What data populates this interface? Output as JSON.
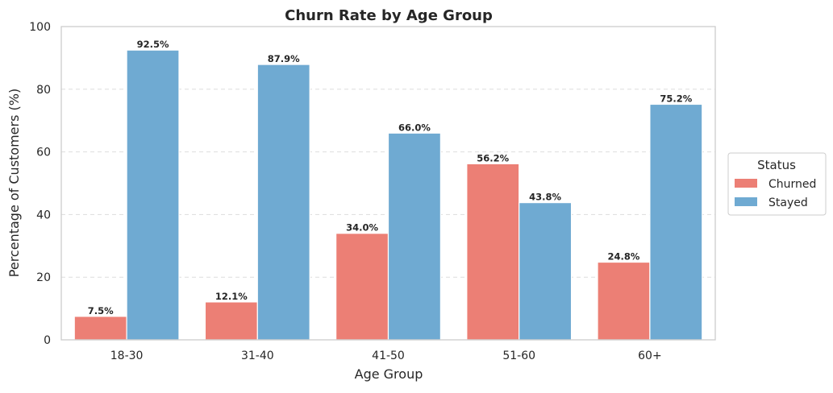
{
  "chart_data": {
    "type": "bar",
    "title": "Churn Rate by Age Group",
    "xlabel": "Age Group",
    "ylabel": "Percentage of Customers (%)",
    "categories": [
      "18-30",
      "31-40",
      "41-50",
      "51-60",
      "60+"
    ],
    "series": [
      {
        "name": "Churned",
        "values": [
          7.5,
          12.1,
          34.0,
          56.2,
          24.8
        ],
        "color": "#ec7f75"
      },
      {
        "name": "Stayed",
        "values": [
          92.5,
          87.9,
          66.0,
          43.8,
          75.2
        ],
        "color": "#6faad2"
      }
    ],
    "data_labels": [
      [
        "7.5%",
        "12.1%",
        "34.0%",
        "56.2%",
        "24.8%"
      ],
      [
        "92.5%",
        "87.9%",
        "66.0%",
        "43.8%",
        "75.2%"
      ]
    ],
    "ylim": [
      0,
      100
    ],
    "yticks": [
      0,
      20,
      40,
      60,
      80,
      100
    ],
    "grid": "horizontal-dashed",
    "legend": {
      "title": "Status",
      "placement": "right-outside"
    }
  }
}
